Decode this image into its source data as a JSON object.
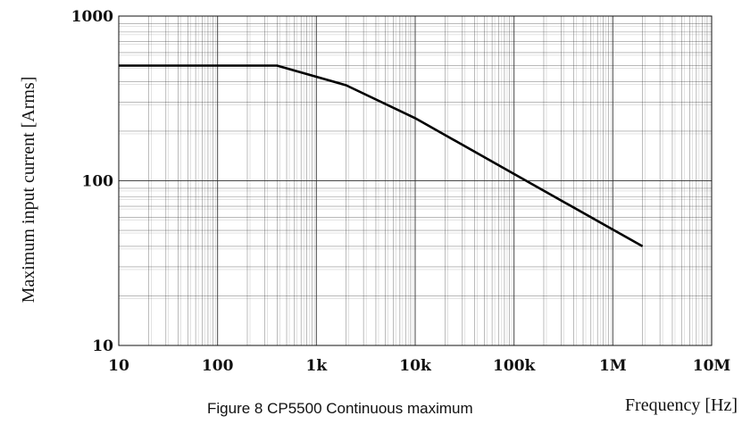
{
  "chart_data": {
    "type": "line",
    "title": "",
    "xlabel": "Frequency [Hz]",
    "ylabel": "Maximum input current [Arms]",
    "xscale": "log",
    "yscale": "log",
    "xlim": [
      10,
      10000000
    ],
    "ylim": [
      10,
      1000
    ],
    "x_tick_values": [
      10,
      100,
      1000,
      10000,
      100000,
      1000000,
      10000000
    ],
    "x_ticks": [
      "10",
      "100",
      "1k",
      "10k",
      "100k",
      "1M",
      "10M"
    ],
    "y_tick_values": [
      10,
      100,
      1000
    ],
    "y_ticks": [
      "10",
      "100",
      "1000"
    ],
    "grid": true,
    "legend": "none",
    "line_color": "#000000",
    "grid_color": "#333333",
    "series": [
      {
        "x": [
          10,
          400,
          2000,
          10000,
          100000,
          2000000
        ],
        "y": [
          500,
          500,
          380,
          240,
          110,
          40
        ]
      }
    ]
  },
  "caption": "Figure 8 CP5500 Continuous maximum"
}
